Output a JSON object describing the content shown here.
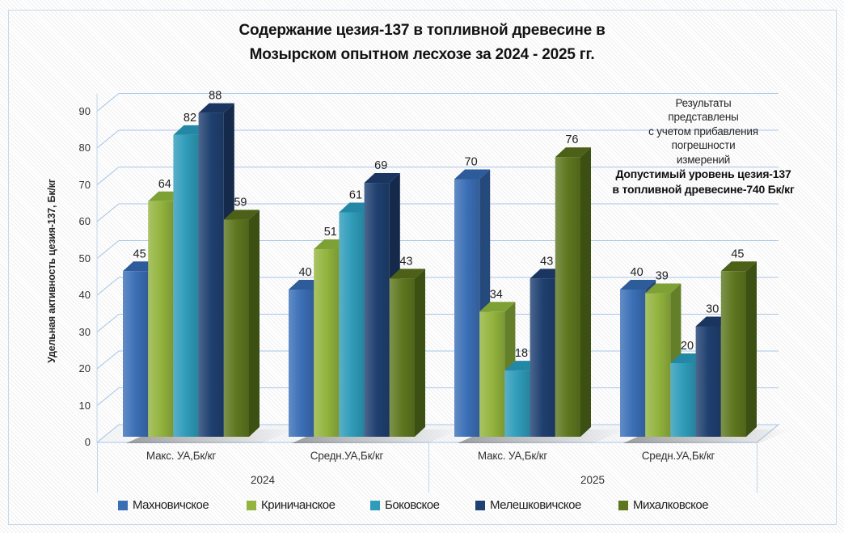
{
  "title": {
    "line1": "Содержание цезия-137 в топливной древесине в",
    "line2": "Мозырском опытном лесхозе за 2024 - 2025 гг."
  },
  "y_axis": {
    "title": "Удельная активность цезия-137, Бк/кг",
    "ticks": [
      0,
      10,
      20,
      30,
      40,
      50,
      60,
      70,
      80,
      90
    ]
  },
  "x_axis": {
    "group_labels": [
      "Макс. УА,Бк/кг",
      "Средн.УА,Бк/кг",
      "Макс. УА,Бк/кг",
      "Средн.УА,Бк/кг"
    ],
    "year_labels": [
      "2024",
      "2025"
    ]
  },
  "annotation": {
    "regular_lines": [
      "Результаты",
      "представлены",
      "с учетом прибавления",
      "погрешности",
      "измерений"
    ],
    "bold_lines": [
      "Допустимый уровень цезия-137",
      "в топливной древесине-740 Бк/кг"
    ]
  },
  "chart_data": {
    "type": "bar",
    "title": "Содержание цезия-137 в топливной древесине в Мозырском опытном лесхозе за 2024 - 2025 гг.",
    "categories": [
      "Макс. УА,Бк/кг (2024)",
      "Средн.УА,Бк/кг (2024)",
      "Макс. УА,Бк/кг (2025)",
      "Средн.УА,Бк/кг (2025)"
    ],
    "series": [
      {
        "name": "Махновичское",
        "values": [
          45,
          40,
          70,
          40
        ],
        "color": "#3b6fb6",
        "top_color": "#2e5b99",
        "side_color": "#26497c"
      },
      {
        "name": "Криничанское",
        "values": [
          64,
          51,
          34,
          39
        ],
        "color": "#93b43e",
        "top_color": "#7da135",
        "side_color": "#647f2a"
      },
      {
        "name": "Боковское",
        "values": [
          82,
          61,
          18,
          20
        ],
        "color": "#2f9cba",
        "top_color": "#2387a6",
        "side_color": "#1d6e88"
      },
      {
        "name": "Мелешковичское",
        "values": [
          88,
          69,
          43,
          30
        ],
        "color": "#1f4070",
        "top_color": "#1a3660",
        "side_color": "#15294b"
      },
      {
        "name": "Михалковское",
        "values": [
          59,
          43,
          76,
          45
        ],
        "color": "#5e771f",
        "top_color": "#4d6018",
        "side_color": "#3d5014"
      }
    ],
    "ylabel": "Удельная активность цезия-137, Бк/кг",
    "xlabel": "",
    "ylim": [
      0,
      90
    ],
    "ytick_step": 10,
    "grid": true,
    "legend_position": "bottom",
    "data_labels": true
  },
  "colors": {
    "gridline": "#a9c7e7",
    "axis_line": "#c3d4e8",
    "data_label": "#1f1f1f",
    "border": "#c9d9ea"
  }
}
